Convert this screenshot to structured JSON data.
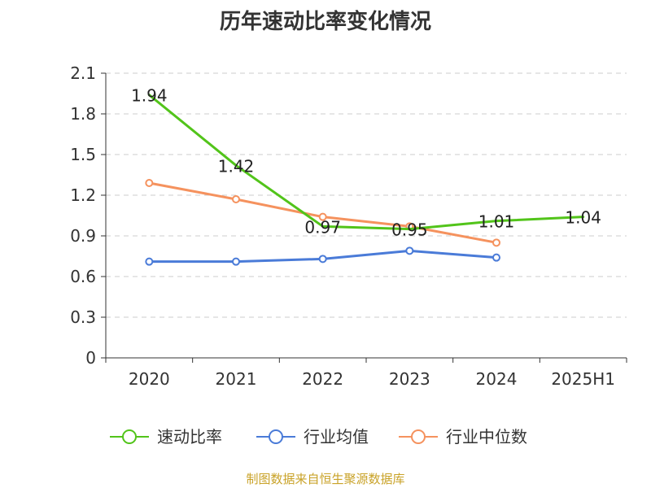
{
  "chart_data": {
    "type": "line",
    "title": "历年速动比率变化情况",
    "categories": [
      "2020",
      "2021",
      "2022",
      "2023",
      "2024",
      "2025H1"
    ],
    "ylim": [
      0,
      2.1
    ],
    "yticks": [
      "0",
      "0.3",
      "0.6",
      "0.9",
      "1.2",
      "1.5",
      "1.8",
      "2.1"
    ],
    "ytick_values": [
      0,
      0.3,
      0.6,
      0.9,
      1.2,
      1.5,
      1.8,
      2.1
    ],
    "grid": true,
    "legend_position": "bottom",
    "series": [
      {
        "name": "速动比率",
        "color": "#52c41a",
        "values": [
          1.94,
          1.42,
          0.97,
          0.95,
          1.01,
          1.04
        ],
        "labels": [
          "1.94",
          "1.42",
          "0.97",
          "0.95",
          "1.01",
          "1.04"
        ],
        "show_markers": false
      },
      {
        "name": "行业均值",
        "color": "#4a7bd8",
        "values": [
          0.71,
          0.71,
          0.73,
          0.79,
          0.74,
          null
        ],
        "show_markers": true
      },
      {
        "name": "行业中位数",
        "color": "#f5925e",
        "values": [
          1.29,
          1.17,
          1.04,
          0.97,
          0.85,
          null
        ],
        "show_markers": true
      }
    ]
  },
  "source_text": "制图数据来自恒生聚源数据库"
}
